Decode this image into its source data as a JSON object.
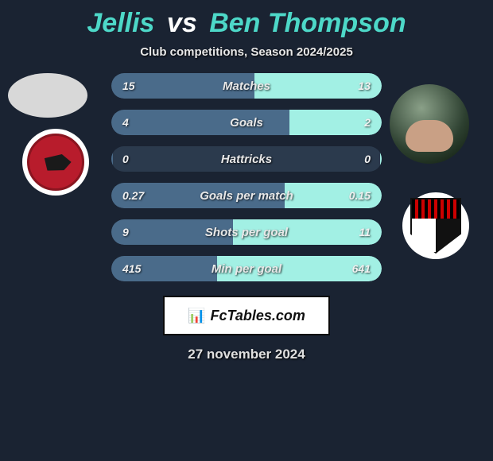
{
  "title": {
    "player1": "Jellis",
    "vs": "vs",
    "player2": "Ben Thompson"
  },
  "subtitle": "Club competitions, Season 2024/2025",
  "stats": [
    {
      "label": "Matches",
      "left_val": "15",
      "right_val": "13",
      "left_pct": 53,
      "right_pct": 47
    },
    {
      "label": "Goals",
      "left_val": "4",
      "right_val": "2",
      "left_pct": 66,
      "right_pct": 34
    },
    {
      "label": "Hattricks",
      "left_val": "0",
      "right_val": "0",
      "left_pct": 0.5,
      "right_pct": 0.5
    },
    {
      "label": "Goals per match",
      "left_val": "0.27",
      "right_val": "0.15",
      "left_pct": 64,
      "right_pct": 36
    },
    {
      "label": "Shots per goal",
      "left_val": "9",
      "right_val": "11",
      "left_pct": 45,
      "right_pct": 55
    },
    {
      "label": "Min per goal",
      "left_val": "415",
      "right_val": "641",
      "left_pct": 39,
      "right_pct": 61
    }
  ],
  "colors": {
    "accent_text": "#4dd8c8",
    "bar_left": "#4a6b8a",
    "bar_right": "#a2f0e4",
    "bar_track": "#2b3a4d",
    "background": "#1a2332"
  },
  "brand": {
    "icon": "📊",
    "text": "FcTables.com"
  },
  "date": "27 november 2024"
}
